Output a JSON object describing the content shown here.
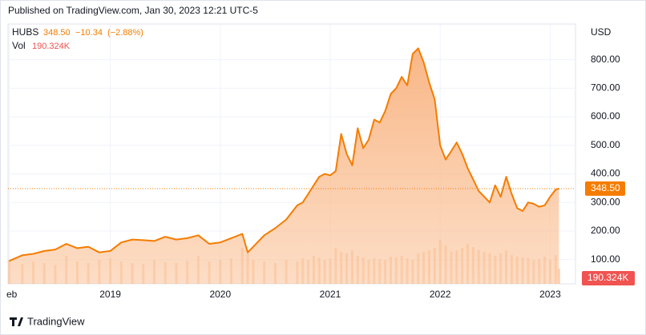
{
  "chart_data": {
    "type": "area",
    "published": "Published on TradingView.com, Jan 30, 2023 12:21 UTC-5",
    "symbol_price": "348.50",
    "change": "−10.34",
    "change_pct": "(−2.88%)",
    "currency": "USD",
    "brand": "TradingView",
    "x": [
      2018.08,
      2018.2,
      2018.3,
      2018.4,
      2018.5,
      2018.6,
      2018.7,
      2018.8,
      2018.9,
      2019.0,
      2019.1,
      2019.2,
      2019.3,
      2019.4,
      2019.5,
      2019.6,
      2019.7,
      2019.8,
      2019.9,
      2020.0,
      2020.1,
      2020.2,
      2020.25,
      2020.3,
      2020.4,
      2020.5,
      2020.6,
      2020.7,
      2020.75,
      2020.8,
      2020.85,
      2020.9,
      2020.95,
      2021.0,
      2021.05,
      2021.1,
      2021.15,
      2021.2,
      2021.25,
      2021.3,
      2021.35,
      2021.4,
      2021.45,
      2021.5,
      2021.55,
      2021.6,
      2021.65,
      2021.7,
      2021.75,
      2021.8,
      2021.85,
      2021.9,
      2021.95,
      2022.0,
      2022.05,
      2022.1,
      2022.15,
      2022.2,
      2022.25,
      2022.3,
      2022.35,
      2022.4,
      2022.45,
      2022.5,
      2022.55,
      2022.6,
      2022.65,
      2022.7,
      2022.75,
      2022.8,
      2022.85,
      2022.9,
      2022.95,
      2023.0,
      2023.05,
      2023.08
    ],
    "series": [
      {
        "name": "HUBS",
        "color": "#f57c00",
        "values": [
          95,
          115,
          120,
          130,
          135,
          155,
          140,
          145,
          125,
          130,
          160,
          170,
          168,
          165,
          180,
          170,
          175,
          185,
          155,
          160,
          175,
          190,
          125,
          145,
          185,
          210,
          240,
          290,
          300,
          330,
          360,
          390,
          400,
          395,
          410,
          540,
          470,
          430,
          560,
          490,
          520,
          590,
          580,
          620,
          680,
          700,
          740,
          710,
          820,
          840,
          790,
          720,
          660,
          500,
          450,
          480,
          510,
          470,
          420,
          380,
          340,
          320,
          300,
          360,
          320,
          390,
          330,
          280,
          270,
          300,
          295,
          285,
          290,
          320,
          345,
          348.5
        ]
      },
      {
        "name": "Vol",
        "color": "#f9b98c",
        "values": [
          300,
          250,
          280,
          260,
          240,
          350,
          280,
          260,
          300,
          320,
          280,
          260,
          250,
          300,
          270,
          260,
          290,
          350,
          280,
          300,
          320,
          450,
          400,
          300,
          280,
          260,
          300,
          280,
          320,
          300,
          350,
          330,
          300,
          320,
          450,
          400,
          380,
          420,
          350,
          330,
          300,
          320,
          310,
          300,
          340,
          330,
          350,
          320,
          300,
          380,
          400,
          420,
          450,
          550,
          480,
          400,
          420,
          450,
          500,
          460,
          420,
          400,
          380,
          350,
          380,
          420,
          360,
          340,
          330,
          320,
          300,
          310,
          340,
          300,
          360,
          190.324
        ],
        "value_labels": [
          null,
          null,
          null,
          null,
          null,
          null,
          null,
          null,
          null,
          null,
          null,
          null,
          null,
          null,
          null,
          null,
          null,
          null,
          null,
          null,
          null,
          null,
          null,
          null,
          null,
          null,
          null,
          null,
          null,
          null,
          null,
          null,
          null,
          null,
          null,
          null,
          null,
          null,
          null,
          null,
          null,
          null,
          null,
          null,
          null,
          null,
          null,
          null,
          null,
          null,
          null,
          null,
          null,
          null,
          null,
          null,
          null,
          null,
          null,
          null,
          null,
          null,
          null,
          null,
          null,
          null,
          null,
          null,
          null,
          null,
          null,
          null,
          null,
          null,
          null,
          "190.324K"
        ]
      }
    ],
    "xlim": [
      2018.07,
      2023.23
    ],
    "ylim": [
      15,
      925
    ],
    "vol_ylim": [
      0,
      1000
    ],
    "xticks": [
      {
        "value": 2018.08,
        "label": "eb"
      },
      2019,
      2020,
      2021,
      2022,
      2023
    ],
    "yticks": [
      {
        "value": 100,
        "label": "100.00"
      },
      {
        "value": 200,
        "label": "200.00"
      },
      {
        "value": 300,
        "label": "300.00"
      },
      {
        "value": 400,
        "label": "400.00"
      },
      {
        "value": 500,
        "label": "500.00"
      },
      {
        "value": 600,
        "label": "600.00"
      },
      {
        "value": 700,
        "label": "700.00"
      },
      {
        "value": 800,
        "label": "800.00"
      }
    ],
    "grid": true
  }
}
